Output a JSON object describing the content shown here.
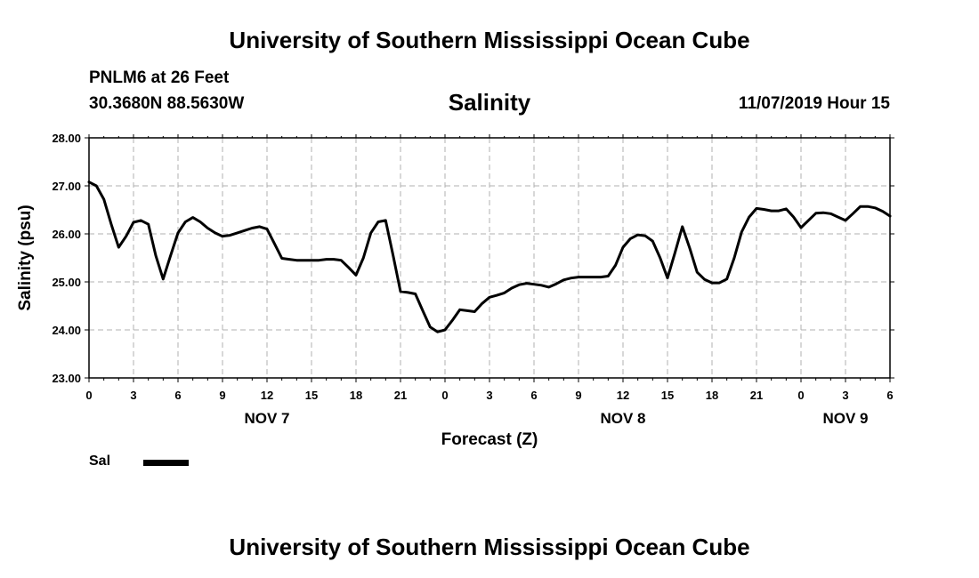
{
  "header": {
    "title": "University of Southern Mississippi Ocean Cube",
    "station": "PNLM6 at 26 Feet",
    "coordinates": "30.3680N 88.5630W",
    "chart_title": "Salinity",
    "datetime": "11/07/2019 Hour 15"
  },
  "footer": {
    "title": "University of Southern Mississippi Ocean Cube"
  },
  "legend": {
    "label": "Sal"
  },
  "chart_data": {
    "type": "line",
    "title": "Salinity",
    "xlabel": "Forecast (Z)",
    "ylabel": "Salinity (psu)",
    "xlim": [
      0,
      54
    ],
    "ylim": [
      23.0,
      28.0
    ],
    "grid": true,
    "legend_position": "bottom-left",
    "y_ticks": [
      "23.00",
      "24.00",
      "25.00",
      "26.00",
      "27.00",
      "28.00"
    ],
    "x_tick_labels": [
      "0",
      "3",
      "6",
      "9",
      "12",
      "15",
      "18",
      "21",
      "0",
      "3",
      "6",
      "9",
      "12",
      "15",
      "18",
      "21",
      "0",
      "3",
      "6"
    ],
    "day_labels": [
      {
        "label": "NOV 7",
        "hour": 12
      },
      {
        "label": "NOV 8",
        "hour": 36
      },
      {
        "label": "NOV 9",
        "hour": 51
      }
    ],
    "series": [
      {
        "name": "Sal",
        "x": [
          0,
          0.5,
          1,
          1.5,
          2,
          2.5,
          3,
          3.5,
          4,
          4.5,
          5,
          5.5,
          6,
          6.5,
          7,
          7.5,
          8,
          8.5,
          9,
          9.5,
          10,
          10.5,
          11,
          11.5,
          12,
          12.5,
          13,
          13.5,
          14,
          14.5,
          15,
          15.5,
          16,
          16.5,
          17,
          17.5,
          18,
          18.5,
          19,
          19.5,
          20,
          20.5,
          21,
          21.5,
          22,
          22.5,
          23,
          23.5,
          24,
          24.5,
          25,
          25.5,
          26,
          26.5,
          27,
          27.5,
          28,
          28.5,
          29,
          29.5,
          30,
          30.5,
          31,
          31.5,
          32,
          32.5,
          33,
          33.5,
          34,
          34.5,
          35,
          35.5,
          36,
          36.5,
          37,
          37.5,
          38,
          38.5,
          39,
          39.5,
          40,
          40.5,
          41,
          41.5,
          42,
          42.5,
          43,
          43.5,
          44,
          44.5,
          45,
          45.5,
          46,
          46.5,
          47,
          47.5,
          48,
          48.5,
          49,
          49.5,
          50,
          50.5,
          51,
          51.5,
          52,
          52.5,
          53,
          53.5,
          54
        ],
        "values": [
          27.08,
          27.0,
          26.72,
          26.2,
          25.72,
          25.95,
          26.24,
          26.28,
          26.2,
          25.55,
          25.06,
          25.55,
          26.02,
          26.25,
          26.34,
          26.25,
          26.12,
          26.02,
          25.95,
          25.97,
          26.02,
          26.07,
          26.12,
          26.15,
          26.1,
          25.8,
          25.49,
          25.47,
          25.45,
          25.45,
          25.45,
          25.45,
          25.47,
          25.47,
          25.45,
          25.3,
          25.14,
          25.5,
          26.02,
          26.25,
          26.28,
          25.55,
          24.8,
          24.78,
          24.75,
          24.4,
          24.06,
          23.96,
          24.0,
          24.2,
          24.42,
          24.4,
          24.38,
          24.55,
          24.68,
          24.72,
          24.77,
          24.87,
          24.94,
          24.97,
          24.95,
          24.93,
          24.89,
          24.96,
          25.04,
          25.08,
          25.1,
          25.1,
          25.1,
          25.1,
          25.12,
          25.35,
          25.72,
          25.9,
          25.98,
          25.96,
          25.85,
          25.5,
          25.08,
          25.6,
          26.15,
          25.7,
          25.2,
          25.05,
          24.98,
          24.98,
          25.06,
          25.5,
          26.04,
          26.35,
          26.53,
          26.51,
          26.48,
          26.48,
          26.52,
          26.35,
          26.13,
          26.28,
          26.43,
          26.44,
          26.42,
          26.35,
          26.28,
          26.42,
          26.57,
          26.57,
          26.54,
          26.47,
          26.37
        ]
      }
    ]
  }
}
